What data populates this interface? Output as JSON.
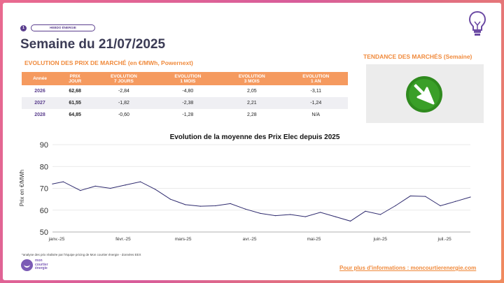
{
  "header": {
    "tag_number": "1",
    "tag_label": "HEBDO ÉNERGIE",
    "week_title": "Semaine du 21/07/2025",
    "section_title": "EVOLUTION DES PRIX DE MARCHÉ (en €/MWh, Powernext)",
    "trend_title": "TENDANCE DES MARCHÉS (Semaine)",
    "trend_icon": "arrow-down-right-icon",
    "bulb_icon": "lightbulb-icon"
  },
  "table": {
    "headers": [
      "Année",
      "PRIX\nJOUR",
      "EVOLUTION\n7 JOURS",
      "EVOLUTION\n1 MOIS",
      "EVOLUTION\n3 MOIS",
      "EVOLUTION\n1 AN"
    ],
    "rows": [
      [
        "2026",
        "62,68",
        "-2,84",
        "-4,80",
        "2,05",
        "-3,11"
      ],
      [
        "2027",
        "61,55",
        "-1,82",
        "-2,38",
        "2,21",
        "-1,24"
      ],
      [
        "2028",
        "64,85",
        "-0,60",
        "-1,28",
        "2,28",
        "N/A"
      ]
    ]
  },
  "chart_data": {
    "type": "line",
    "title": "Evolution de la moyenne des Prix Elec depuis 2025",
    "ylabel": "Prix en €/MWh",
    "xlabel": "",
    "ylim": [
      50,
      90
    ],
    "yticks": [
      50,
      60,
      70,
      80,
      90
    ],
    "grid": true,
    "line_color": "#2e2a6e",
    "x_tick_labels": [
      "janv.-25",
      "févr.-25",
      "mars-25",
      "avr.-25",
      "mai-25",
      "juin-25",
      "juil.-25"
    ],
    "x_tick_positions": [
      0,
      31,
      59,
      90,
      120,
      151,
      181
    ],
    "series": [
      {
        "x": [
          0,
          5,
          13,
          20,
          27,
          34,
          41,
          48,
          55,
          62,
          69,
          76,
          83,
          90,
          97,
          104,
          111,
          118,
          125,
          132,
          139,
          146,
          153,
          160,
          167,
          174,
          181,
          188,
          195
        ],
        "values": [
          72,
          73,
          69,
          71,
          70,
          71.5,
          73,
          69.5,
          65,
          62.5,
          61.8,
          62,
          63,
          60.5,
          58.5,
          57.5,
          58,
          57,
          59,
          57,
          55,
          59.5,
          58,
          62,
          66.5,
          66.3,
          62,
          64,
          66
        ]
      }
    ]
  },
  "footer": {
    "footnote": "*analyse des prix réalisée par l'équipe pricing de Mon courtier énergie -  données EEX",
    "logo_text": "mon courtier énergie",
    "more_info": "Pour plus d'informations : moncourtierenergie.com"
  }
}
